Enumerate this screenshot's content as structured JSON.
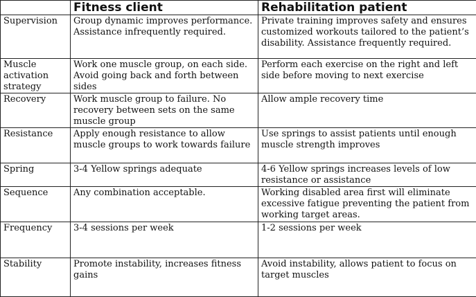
{
  "table": {
    "headers": [
      "",
      "Fitness client",
      "Rehabilitation patient"
    ],
    "rows": [
      {
        "label": "Supervision",
        "fitness": "Group dynamic improves performance. Assistance infrequently required.",
        "rehab": "Private training improves safety and ensures customized workouts tailored to the patient’s disability. Assistance frequently required."
      },
      {
        "label": "Muscle activation strategy",
        "fitness": "Work one muscle group, on each side. Avoid going back and forth between sides",
        "rehab": "Perform each exercise on the right and left side before moving to next exercise"
      },
      {
        "label": "Recovery",
        "fitness": "Work muscle group to failure. No recovery between sets on the same muscle group",
        "rehab": "Allow ample recovery time"
      },
      {
        "label": "Resistance",
        "fitness": "Apply enough resistance to allow muscle groups to work towards failure",
        "rehab": "Use springs to assist patients until enough muscle strength improves"
      },
      {
        "label": "Spring",
        "fitness": "3-4 Yellow springs adequate",
        "rehab": "4-6 Yellow springs increases levels of low resistance or assistance"
      },
      {
        "label": "Sequence",
        "fitness": "Any combination acceptable.",
        "rehab": "Working disabled area first will eliminate excessive fatigue preventing the patient from working target areas."
      },
      {
        "label": "Frequency",
        "fitness": "3-4 sessions per week",
        "rehab": "1-2 sessions per week"
      },
      {
        "label": "Stability",
        "fitness": "Promote instability, increases fitness gains",
        "rehab": "Avoid instability, allows patient to focus on target muscles"
      }
    ]
  }
}
